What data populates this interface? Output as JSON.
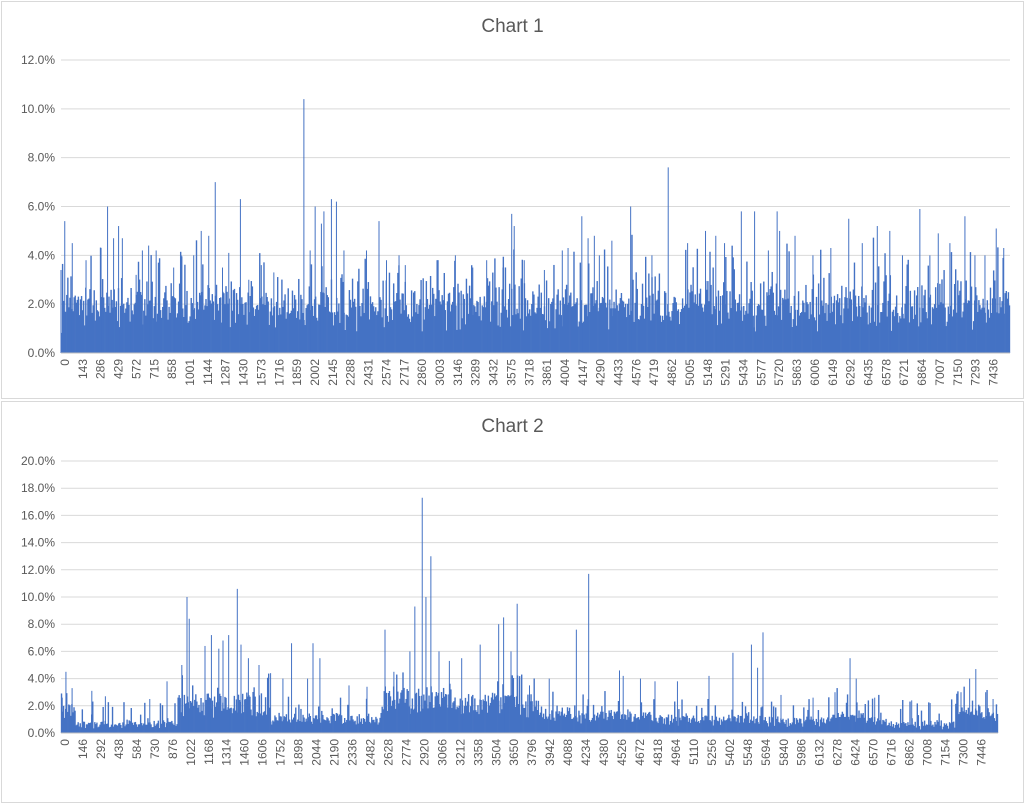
{
  "chart_data": [
    {
      "type": "bar",
      "title": "Chart 1",
      "xlabel": "",
      "ylabel": "",
      "ylim": [
        0,
        0.12
      ],
      "y_ticks": [
        "0.0%",
        "2.0%",
        "4.0%",
        "6.0%",
        "8.0%",
        "10.0%",
        "12.0%"
      ],
      "y_tick_values": [
        0,
        0.02,
        0.04,
        0.06,
        0.08,
        0.1,
        0.12
      ],
      "x_tick_labels": [
        "0",
        "143",
        "286",
        "429",
        "572",
        "715",
        "858",
        "1001",
        "1144",
        "1287",
        "1430",
        "1573",
        "1716",
        "1859",
        "2002",
        "2145",
        "2288",
        "2431",
        "2574",
        "2717",
        "2860",
        "3003",
        "3146",
        "3289",
        "3432",
        "3575",
        "3718",
        "3861",
        "4004",
        "4147",
        "4290",
        "4433",
        "4576",
        "4719",
        "4862",
        "5005",
        "5148",
        "5291",
        "5434",
        "5577",
        "5720",
        "5863",
        "6006",
        "6149",
        "6292",
        "6435",
        "6578",
        "6721",
        "6864",
        "7007",
        "7150",
        "7293",
        "7436"
      ],
      "x_range": [
        0,
        7580
      ],
      "grid": true,
      "color": "#4472c4",
      "baseline": 0.012,
      "noise": 0.014,
      "segments": [
        [
          0,
          7580,
          0.013
        ]
      ],
      "peaks": [
        [
          0,
          0.034
        ],
        [
          30,
          0.054
        ],
        [
          90,
          0.045
        ],
        [
          200,
          0.038
        ],
        [
          320,
          0.043
        ],
        [
          372,
          0.06
        ],
        [
          420,
          0.047
        ],
        [
          460,
          0.052
        ],
        [
          490,
          0.047
        ],
        [
          560,
          0.025
        ],
        [
          600,
          0.032
        ],
        [
          650,
          0.042
        ],
        [
          700,
          0.044
        ],
        [
          760,
          0.042
        ],
        [
          900,
          0.035
        ],
        [
          960,
          0.04
        ],
        [
          1060,
          0.04
        ],
        [
          1120,
          0.05
        ],
        [
          1180,
          0.048
        ],
        [
          1232,
          0.07
        ],
        [
          1290,
          0.035
        ],
        [
          1340,
          0.041
        ],
        [
          1433,
          0.063
        ],
        [
          1500,
          0.03
        ],
        [
          1600,
          0.036
        ],
        [
          1700,
          0.033
        ],
        [
          1900,
          0.03
        ],
        [
          1940,
          0.104
        ],
        [
          1990,
          0.042
        ],
        [
          2030,
          0.06
        ],
        [
          2080,
          0.053
        ],
        [
          2100,
          0.058
        ],
        [
          2160,
          0.063
        ],
        [
          2200,
          0.062
        ],
        [
          2260,
          0.042
        ],
        [
          2430,
          0.038
        ],
        [
          2440,
          0.042
        ],
        [
          2540,
          0.054
        ],
        [
          2600,
          0.038
        ],
        [
          2700,
          0.04
        ],
        [
          2750,
          0.036
        ],
        [
          3003,
          0.038
        ],
        [
          3150,
          0.04
        ],
        [
          3289,
          0.035
        ],
        [
          3400,
          0.038
        ],
        [
          3530,
          0.035
        ],
        [
          3600,
          0.057
        ],
        [
          3620,
          0.052
        ],
        [
          3700,
          0.038
        ],
        [
          3861,
          0.034
        ],
        [
          4004,
          0.042
        ],
        [
          4050,
          0.043
        ],
        [
          4160,
          0.056
        ],
        [
          4210,
          0.047
        ],
        [
          4260,
          0.048
        ],
        [
          4300,
          0.04
        ],
        [
          4400,
          0.046
        ],
        [
          4550,
          0.06
        ],
        [
          4720,
          0.04
        ],
        [
          4850,
          0.076
        ],
        [
          5005,
          0.045
        ],
        [
          5148,
          0.05
        ],
        [
          5230,
          0.048
        ],
        [
          5300,
          0.045
        ],
        [
          5434,
          0.058
        ],
        [
          5540,
          0.058
        ],
        [
          5650,
          0.042
        ],
        [
          5720,
          0.058
        ],
        [
          5740,
          0.05
        ],
        [
          5863,
          0.048
        ],
        [
          6006,
          0.04
        ],
        [
          6149,
          0.043
        ],
        [
          6292,
          0.055
        ],
        [
          6400,
          0.045
        ],
        [
          6520,
          0.052
        ],
        [
          6620,
          0.05
        ],
        [
          6721,
          0.04
        ],
        [
          6860,
          0.059
        ],
        [
          6940,
          0.04
        ],
        [
          7007,
          0.049
        ],
        [
          7100,
          0.045
        ],
        [
          7220,
          0.056
        ],
        [
          7300,
          0.04
        ],
        [
          7380,
          0.04
        ],
        [
          7470,
          0.051
        ],
        [
          7530,
          0.043
        ]
      ]
    },
    {
      "type": "bar",
      "title": "Chart 2",
      "xlabel": "",
      "ylabel": "",
      "ylim": [
        0,
        0.2
      ],
      "y_ticks": [
        "0.0%",
        "2.0%",
        "4.0%",
        "6.0%",
        "8.0%",
        "10.0%",
        "12.0%",
        "14.0%",
        "16.0%",
        "18.0%",
        "20.0%"
      ],
      "y_tick_values": [
        0,
        0.02,
        0.04,
        0.06,
        0.08,
        0.1,
        0.12,
        0.14,
        0.16,
        0.18,
        0.2
      ],
      "x_tick_labels": [
        "0",
        "146",
        "292",
        "438",
        "584",
        "730",
        "876",
        "1022",
        "1168",
        "1314",
        "1460",
        "1606",
        "1752",
        "1898",
        "2044",
        "2190",
        "2336",
        "2482",
        "2628",
        "2774",
        "2920",
        "3066",
        "3212",
        "3358",
        "3504",
        "3650",
        "3796",
        "3942",
        "4088",
        "4234",
        "4380",
        "4526",
        "4672",
        "4818",
        "4964",
        "5110",
        "5256",
        "5402",
        "5548",
        "5694",
        "5840",
        "5986",
        "6132",
        "6278",
        "6424",
        "6570",
        "6716",
        "6862",
        "7008",
        "7154",
        "7300",
        "7446"
      ],
      "x_range": [
        0,
        7600
      ],
      "grid": true,
      "color": "#4472c4",
      "baseline": 0.004,
      "noise": 0.012,
      "segments": [
        [
          0,
          120,
          0.014
        ],
        [
          120,
          950,
          0.004
        ],
        [
          950,
          1700,
          0.018
        ],
        [
          1700,
          2600,
          0.008
        ],
        [
          2600,
          3200,
          0.022
        ],
        [
          3200,
          3900,
          0.018
        ],
        [
          3900,
          4600,
          0.01
        ],
        [
          4600,
          5700,
          0.008
        ],
        [
          5700,
          6200,
          0.006
        ],
        [
          6200,
          6700,
          0.009
        ],
        [
          6700,
          7250,
          0.004
        ],
        [
          7250,
          7600,
          0.012
        ]
      ],
      "peaks": [
        [
          10,
          0.026
        ],
        [
          40,
          0.045
        ],
        [
          90,
          0.033
        ],
        [
          250,
          0.031
        ],
        [
          360,
          0.027
        ],
        [
          720,
          0.025
        ],
        [
          860,
          0.038
        ],
        [
          980,
          0.05
        ],
        [
          1022,
          0.1
        ],
        [
          1040,
          0.084
        ],
        [
          1168,
          0.064
        ],
        [
          1220,
          0.072
        ],
        [
          1280,
          0.062
        ],
        [
          1314,
          0.068
        ],
        [
          1360,
          0.072
        ],
        [
          1430,
          0.106
        ],
        [
          1460,
          0.065
        ],
        [
          1520,
          0.055
        ],
        [
          1606,
          0.05
        ],
        [
          1700,
          0.044
        ],
        [
          1800,
          0.04
        ],
        [
          1870,
          0.066
        ],
        [
          2000,
          0.04
        ],
        [
          2044,
          0.066
        ],
        [
          2100,
          0.055
        ],
        [
          2336,
          0.035
        ],
        [
          2482,
          0.034
        ],
        [
          2628,
          0.076
        ],
        [
          2700,
          0.045
        ],
        [
          2830,
          0.06
        ],
        [
          2870,
          0.093
        ],
        [
          2930,
          0.173
        ],
        [
          2960,
          0.1
        ],
        [
          3000,
          0.13
        ],
        [
          3066,
          0.06
        ],
        [
          3150,
          0.053
        ],
        [
          3250,
          0.055
        ],
        [
          3400,
          0.065
        ],
        [
          3550,
          0.08
        ],
        [
          3590,
          0.085
        ],
        [
          3650,
          0.06
        ],
        [
          3700,
          0.095
        ],
        [
          3800,
          0.035
        ],
        [
          3960,
          0.04
        ],
        [
          4180,
          0.076
        ],
        [
          4280,
          0.117
        ],
        [
          4530,
          0.046
        ],
        [
          4560,
          0.042
        ],
        [
          4700,
          0.04
        ],
        [
          4818,
          0.038
        ],
        [
          5000,
          0.038
        ],
        [
          5256,
          0.042
        ],
        [
          5450,
          0.059
        ],
        [
          5600,
          0.065
        ],
        [
          5650,
          0.048
        ],
        [
          5694,
          0.074
        ],
        [
          5840,
          0.028
        ],
        [
          6100,
          0.026
        ],
        [
          6278,
          0.03
        ],
        [
          6400,
          0.055
        ],
        [
          6450,
          0.04
        ],
        [
          6600,
          0.026
        ],
        [
          6900,
          0.024
        ],
        [
          7050,
          0.022
        ],
        [
          7300,
          0.03
        ],
        [
          7370,
          0.04
        ],
        [
          7420,
          0.047
        ],
        [
          7500,
          0.03
        ],
        [
          7560,
          0.025
        ]
      ]
    }
  ]
}
